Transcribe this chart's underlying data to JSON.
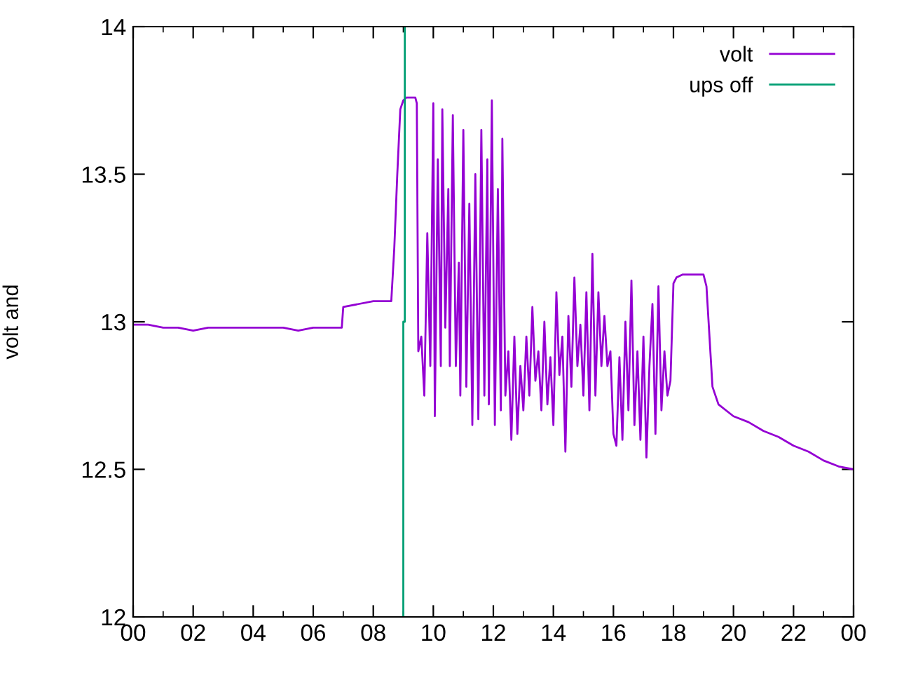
{
  "chart_data": {
    "type": "line",
    "ylabel": "volt and",
    "xlim": [
      0,
      24
    ],
    "ylim": [
      12,
      14
    ],
    "xticks": [
      {
        "value": 0,
        "label": "00"
      },
      {
        "value": 2,
        "label": "02"
      },
      {
        "value": 4,
        "label": "04"
      },
      {
        "value": 6,
        "label": "06"
      },
      {
        "value": 8,
        "label": "08"
      },
      {
        "value": 10,
        "label": "10"
      },
      {
        "value": 12,
        "label": "12"
      },
      {
        "value": 14,
        "label": "14"
      },
      {
        "value": 16,
        "label": "16"
      },
      {
        "value": 18,
        "label": "18"
      },
      {
        "value": 20,
        "label": "20"
      },
      {
        "value": 22,
        "label": "22"
      },
      {
        "value": 24,
        "label": "00"
      }
    ],
    "yticks": [
      12,
      12.5,
      13,
      13.5,
      14
    ],
    "grid": false,
    "legend": "top right",
    "line_style": "solid",
    "marker": "none",
    "series": [
      {
        "name": "volt",
        "color": "#9400d3",
        "x": [
          0,
          0.5,
          1,
          1.5,
          2,
          2.5,
          3,
          3.5,
          4,
          4.5,
          5,
          5.5,
          6,
          6.5,
          6.95,
          7.0,
          7.5,
          8.0,
          8.6,
          8.7,
          8.8,
          8.9,
          9.0,
          9.1,
          9.4,
          9.45,
          9.5,
          9.6,
          9.7,
          9.8,
          9.9,
          10.0,
          10.05,
          10.15,
          10.25,
          10.3,
          10.4,
          10.5,
          10.55,
          10.65,
          10.75,
          10.85,
          10.9,
          11.0,
          11.1,
          11.2,
          11.3,
          11.4,
          11.5,
          11.6,
          11.7,
          11.8,
          11.85,
          11.95,
          12.05,
          12.15,
          12.25,
          12.3,
          12.4,
          12.5,
          12.6,
          12.7,
          12.8,
          12.9,
          13.0,
          13.1,
          13.2,
          13.3,
          13.4,
          13.5,
          13.6,
          13.7,
          13.8,
          13.9,
          14.0,
          14.1,
          14.2,
          14.3,
          14.4,
          14.5,
          14.6,
          14.7,
          14.8,
          14.9,
          15.0,
          15.1,
          15.2,
          15.3,
          15.4,
          15.5,
          15.6,
          15.7,
          15.8,
          15.9,
          16.0,
          16.1,
          16.2,
          16.3,
          16.4,
          16.5,
          16.6,
          16.7,
          16.8,
          16.9,
          17.0,
          17.1,
          17.2,
          17.3,
          17.4,
          17.5,
          17.6,
          17.7,
          17.8,
          17.9,
          18.0,
          18.1,
          18.3,
          19.0,
          19.1,
          19.2,
          19.3,
          19.5,
          20,
          20.5,
          21,
          21.5,
          22,
          22.5,
          23,
          23.5,
          24
        ],
        "values": [
          12.99,
          12.99,
          12.98,
          12.98,
          12.97,
          12.98,
          12.98,
          12.98,
          12.98,
          12.98,
          12.98,
          12.97,
          12.98,
          12.98,
          12.98,
          13.05,
          13.06,
          13.07,
          13.07,
          13.25,
          13.5,
          13.72,
          13.75,
          13.76,
          13.76,
          13.74,
          12.9,
          12.95,
          12.75,
          13.3,
          12.85,
          13.74,
          12.68,
          13.55,
          12.85,
          13.72,
          12.98,
          13.45,
          12.85,
          13.7,
          12.85,
          13.2,
          12.75,
          13.65,
          12.78,
          13.4,
          12.65,
          13.5,
          12.67,
          13.65,
          12.75,
          13.55,
          12.72,
          13.75,
          12.65,
          13.45,
          12.7,
          13.62,
          12.75,
          12.9,
          12.6,
          12.95,
          12.62,
          12.85,
          12.7,
          12.95,
          12.75,
          13.05,
          12.8,
          12.9,
          12.7,
          13.0,
          12.72,
          12.88,
          12.65,
          13.1,
          12.82,
          12.95,
          12.56,
          13.02,
          12.78,
          13.15,
          12.85,
          12.99,
          12.75,
          13.1,
          12.7,
          13.23,
          12.75,
          13.1,
          12.85,
          13.02,
          12.85,
          12.9,
          12.62,
          12.58,
          12.88,
          12.6,
          13.0,
          12.7,
          13.14,
          12.65,
          12.9,
          12.6,
          12.95,
          12.54,
          12.85,
          13.06,
          12.62,
          13.12,
          12.7,
          12.9,
          12.75,
          12.8,
          13.13,
          13.15,
          13.16,
          13.16,
          13.12,
          12.95,
          12.78,
          12.72,
          12.68,
          12.66,
          12.63,
          12.61,
          12.58,
          12.56,
          12.53,
          12.51,
          12.5
        ]
      },
      {
        "name": "ups off",
        "color": "#009e73",
        "x": [
          9.0,
          9.0,
          9.05,
          9.05
        ],
        "values": [
          12,
          13,
          13,
          14
        ]
      }
    ]
  }
}
